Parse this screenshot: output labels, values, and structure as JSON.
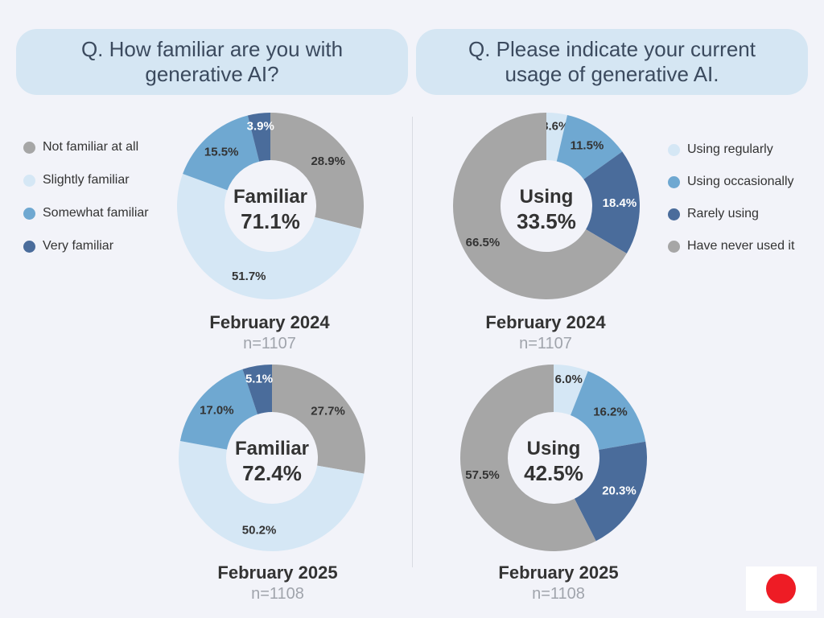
{
  "questions": {
    "left": [
      "Q. How familiar are you with",
      "generative AI?"
    ],
    "right": [
      "Q. Please indicate your current",
      "usage of generative AI."
    ]
  },
  "legend_familiarity": [
    {
      "label": "Not familiar at all",
      "color": "#a6a6a6"
    },
    {
      "label": "Slightly familiar",
      "color": "#d5e7f5"
    },
    {
      "label": "Somewhat familiar",
      "color": "#6fa8d1"
    },
    {
      "label": "Very familiar",
      "color": "#4a6c9b"
    }
  ],
  "legend_usage": [
    {
      "label": "Using regularly",
      "color": "#d5e7f5"
    },
    {
      "label": "Using occasionally",
      "color": "#6fa8d1"
    },
    {
      "label": "Rarely using",
      "color": "#4a6c9b"
    },
    {
      "label": "Have never used it",
      "color": "#a6a6a6"
    }
  ],
  "chart_data": [
    {
      "type": "pie",
      "center_label": [
        "Familiar",
        "71.1%"
      ],
      "date": "February 2024",
      "n": "n=1107",
      "slices": [
        {
          "label": "Not familiar at all",
          "value": 28.9,
          "text": "28.9%",
          "color": "#a6a6a6"
        },
        {
          "label": "Slightly familiar",
          "value": 51.7,
          "text": "51.7%",
          "color": "#d5e7f5"
        },
        {
          "label": "Somewhat familiar",
          "value": 15.5,
          "text": "15.5%",
          "color": "#6fa8d1"
        },
        {
          "label": "Very familiar",
          "value": 3.9,
          "text": "3.9%",
          "color": "#4a6c9b"
        }
      ]
    },
    {
      "type": "pie",
      "center_label": [
        "Using",
        "33.5%"
      ],
      "date": "February 2024",
      "n": "n=1107",
      "slices": [
        {
          "label": "Using regularly",
          "value": 3.6,
          "text": "3.6%",
          "color": "#d5e7f5"
        },
        {
          "label": "Using occasionally",
          "value": 11.5,
          "text": "11.5%",
          "color": "#6fa8d1"
        },
        {
          "label": "Rarely using",
          "value": 18.4,
          "text": "18.4%",
          "color": "#4a6c9b"
        },
        {
          "label": "Have never used it",
          "value": 66.5,
          "text": "66.5%",
          "color": "#a6a6a6"
        }
      ]
    },
    {
      "type": "pie",
      "center_label": [
        "Familiar",
        "72.4%"
      ],
      "date": "February 2025",
      "n": "n=1108",
      "slices": [
        {
          "label": "Not familiar at all",
          "value": 27.7,
          "text": "27.7%",
          "color": "#a6a6a6"
        },
        {
          "label": "Slightly familiar",
          "value": 50.2,
          "text": "50.2%",
          "color": "#d5e7f5"
        },
        {
          "label": "Somewhat familiar",
          "value": 17.0,
          "text": "17.0%",
          "color": "#6fa8d1"
        },
        {
          "label": "Very familiar",
          "value": 5.1,
          "text": "5.1%",
          "color": "#4a6c9b"
        }
      ]
    },
    {
      "type": "pie",
      "center_label": [
        "Using",
        "42.5%"
      ],
      "date": "February 2025",
      "n": "n=1108",
      "slices": [
        {
          "label": "Using regularly",
          "value": 6.0,
          "text": "6.0%",
          "color": "#d5e7f5"
        },
        {
          "label": "Using occasionally",
          "value": 16.2,
          "text": "16.2%",
          "color": "#6fa8d1"
        },
        {
          "label": "Rarely using",
          "value": 20.3,
          "text": "20.3%",
          "color": "#4a6c9b"
        },
        {
          "label": "Have never used it",
          "value": 57.5,
          "text": "57.5%",
          "color": "#a6a6a6"
        }
      ]
    }
  ]
}
